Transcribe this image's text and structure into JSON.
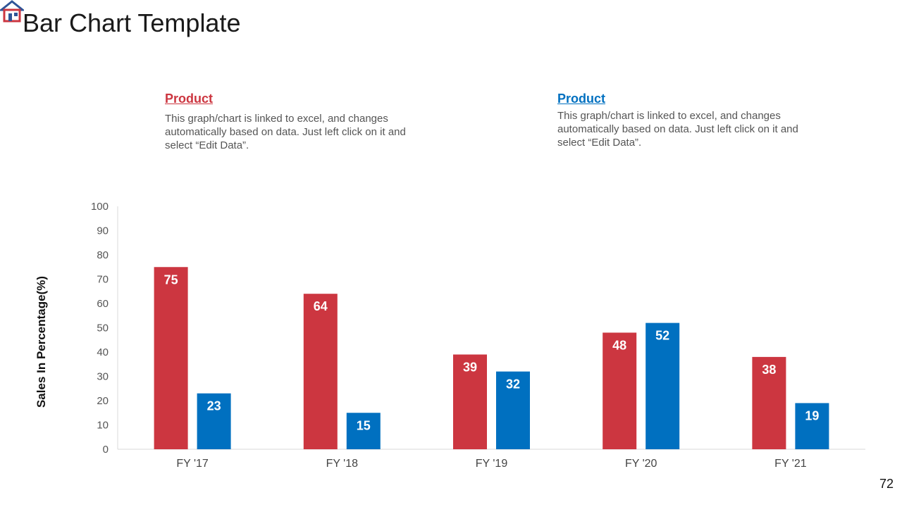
{
  "page": {
    "title": "Bar Chart Template",
    "page_number": "72"
  },
  "legend": [
    {
      "heading": "Product",
      "text": "This graph/chart is linked to excel, and changes automatically based on data. Just left click on it and select “Edit Data”.",
      "color": "#CC3640"
    },
    {
      "heading": "Product",
      "text": "This graph/chart is linked to excel, and changes automatically based on data. Just left click on it and select “Edit Data”.",
      "color": "#0070C0"
    }
  ],
  "chart_data": {
    "type": "bar",
    "title": "",
    "xlabel": "",
    "ylabel": "Sales In Percentage(%)",
    "ylim": [
      0,
      100
    ],
    "yticks": [
      0,
      10,
      20,
      30,
      40,
      50,
      60,
      70,
      80,
      90,
      100
    ],
    "categories": [
      "FY '17",
      "FY '18",
      "FY '19",
      "FY '20",
      "FY '21"
    ],
    "series": [
      {
        "name": "Product",
        "color": "#CC3640",
        "values": [
          75,
          64,
          39,
          48,
          38
        ]
      },
      {
        "name": "Product",
        "color": "#0070C0",
        "values": [
          23,
          15,
          32,
          52,
          19
        ]
      }
    ],
    "grid": false,
    "legend_position": "top"
  }
}
